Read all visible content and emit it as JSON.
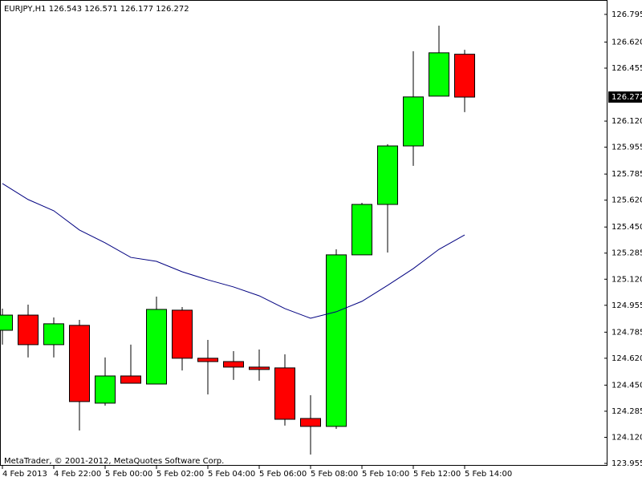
{
  "chart_data": {
    "type": "candlestick",
    "title": "EURJPY,H1  126.543 126.571 126.177 126.272",
    "watermark": "MetaTrader, © 2001-2012, MetaQuotes Software Corp.",
    "categories": [
      "4 Feb 2013",
      null,
      "4 Feb 22:00",
      null,
      "5 Feb 00:00",
      null,
      "5 Feb 02:00",
      null,
      "5 Feb 04:00",
      null,
      "5 Feb 06:00",
      null,
      "5 Feb 08:00",
      null,
      "5 Feb 10:00",
      null,
      "5 Feb 12:00",
      null,
      "5 Feb 14:00"
    ],
    "open": [
      124.797,
      124.893,
      124.706,
      124.828,
      124.336,
      124.508,
      124.457,
      124.924,
      124.62,
      124.599,
      124.564,
      124.559,
      124.239,
      124.189,
      125.274,
      125.593,
      125.963,
      126.278,
      126.543
    ],
    "high": [
      124.934,
      124.959,
      124.878,
      124.863,
      124.625,
      124.706,
      125.01,
      124.944,
      124.736,
      124.665,
      124.675,
      124.645,
      124.386,
      125.309,
      125.603,
      125.974,
      126.562,
      126.724,
      126.571
    ],
    "low": [
      124.706,
      124.625,
      124.625,
      124.163,
      124.32,
      124.462,
      124.457,
      124.543,
      124.391,
      124.483,
      124.478,
      124.194,
      124.011,
      124.173,
      125.274,
      125.289,
      125.837,
      126.278,
      126.177
    ],
    "close": [
      124.893,
      124.706,
      124.838,
      124.346,
      124.508,
      124.462,
      124.929,
      124.62,
      124.599,
      124.564,
      124.549,
      124.234,
      124.189,
      125.274,
      125.593,
      125.963,
      126.273,
      126.552,
      126.272
    ],
    "up_color": "#00ff00",
    "down_color": "#ff0000",
    "ma": {
      "color": "#000080",
      "values": [
        125.725,
        125.624,
        125.553,
        125.431,
        125.35,
        125.258,
        125.233,
        125.167,
        125.116,
        125.071,
        125.015,
        124.934,
        124.873,
        124.914,
        124.98,
        125.081,
        125.187,
        125.309,
        125.4
      ]
    },
    "last_price": 126.272,
    "ylim": [
      123.945,
      126.886
    ],
    "yticks": [
      126.795,
      {
        "value": 126.62,
        "label": "126.620"
      },
      126.455,
      {
        "value": 126.12,
        "label": "126.120"
      },
      125.955,
      125.785,
      {
        "value": 125.62,
        "label": "125.620"
      },
      {
        "value": 125.45,
        "label": "125.450"
      },
      125.285,
      {
        "value": 125.12,
        "label": "125.120"
      },
      124.955,
      124.785,
      {
        "value": 124.62,
        "label": "124.620"
      },
      {
        "value": 124.45,
        "label": "124.450"
      },
      124.285,
      {
        "value": 124.12,
        "label": "124.120"
      },
      123.955
    ],
    "grid": false
  }
}
